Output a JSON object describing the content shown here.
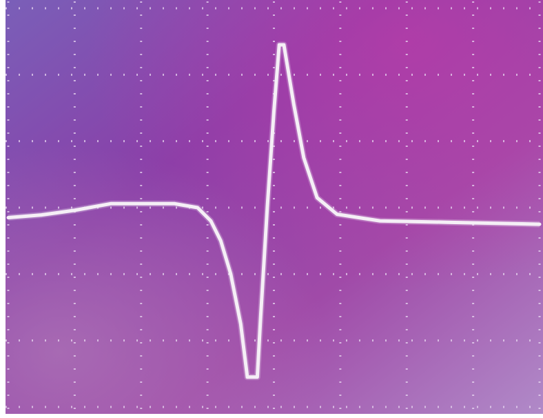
{
  "chart_data": {
    "type": "line",
    "x": [
      0,
      0.5,
      1.0,
      1.55,
      1.95,
      2.5,
      2.85,
      3.05,
      3.2,
      3.35,
      3.5,
      3.6,
      3.75,
      3.8,
      3.9,
      4.0,
      4.08,
      4.15,
      4.3,
      4.45,
      4.65,
      4.95,
      5.6,
      6.6,
      8.0
    ],
    "series": [
      {
        "color": "#f5eff6",
        "values": [
          -0.15,
          -0.11,
          -0.04,
          0.06,
          0.06,
          0.06,
          0.0,
          -0.2,
          -0.5,
          -1.0,
          -1.75,
          -2.55,
          -2.55,
          -1.65,
          0.0,
          1.45,
          2.45,
          2.45,
          1.55,
          0.75,
          0.15,
          -0.1,
          -0.2,
          -0.22,
          -0.25
        ]
      }
    ],
    "xlim": [
      0,
      8
    ],
    "ylim": [
      -3,
      3
    ],
    "xticks": [
      0,
      1,
      2,
      3,
      4,
      5,
      6,
      7,
      8
    ],
    "yticks": [
      -3,
      -2,
      -1,
      0,
      1,
      2,
      3
    ],
    "grid": true
  }
}
